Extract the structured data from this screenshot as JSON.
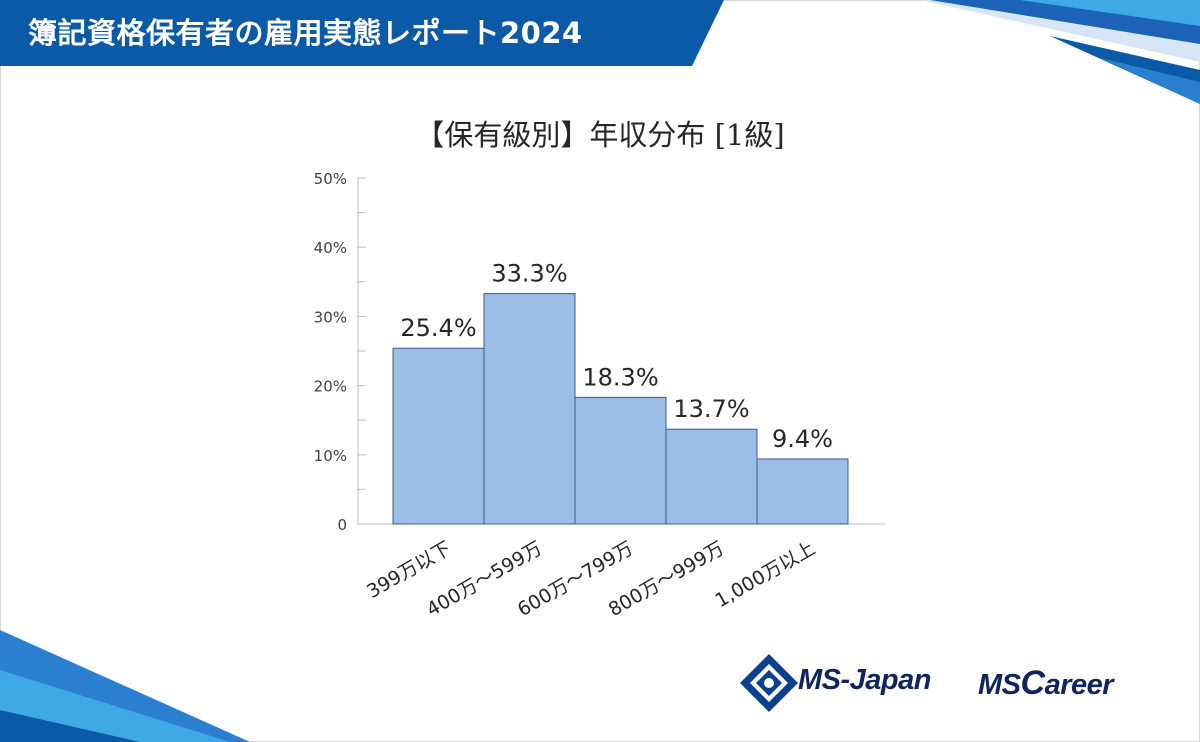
{
  "header": {
    "title": "簿記資格保有者の雇用実態レポート2024"
  },
  "chart_data": {
    "type": "bar",
    "title_main": "【保有級別】年収分布",
    "title_suffix": "[1級]",
    "categories": [
      "399万以下",
      "400万～599万",
      "600万～799万",
      "800万～999万",
      "1,000万以上"
    ],
    "values": [
      25.4,
      33.3,
      18.3,
      13.7,
      9.4
    ],
    "data_labels": [
      "25.4%",
      "33.3%",
      "18.3%",
      "13.7%",
      "9.4%"
    ],
    "ylim": [
      0,
      50
    ],
    "yticks": [
      0,
      10,
      20,
      30,
      40,
      50
    ],
    "ytick_labels": [
      "0",
      "10%",
      "20%",
      "30%",
      "40%",
      "50%"
    ],
    "xlabel": "",
    "ylabel": "",
    "grid": false,
    "bar_color": "#9bbde6",
    "bar_edge_color": "#3b5a8f"
  },
  "logos": {
    "ms_japan": "MS-Japan",
    "ms_career_ms": "MS",
    "ms_career_c": "C",
    "ms_career_rest": "areer"
  },
  "colors": {
    "brand_blue": "#0b5aa8",
    "brand_navy": "#10245e",
    "accent_light": "#3fa9e6"
  }
}
